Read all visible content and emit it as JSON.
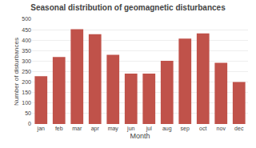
{
  "chart_data": {
    "type": "bar",
    "title": "Seasonal distribution of geomagnetic disturbances",
    "xlabel": "Month",
    "ylabel": "Number of disturbances",
    "categories": [
      "jan",
      "feb",
      "mar",
      "apr",
      "may",
      "jun",
      "jul",
      "aug",
      "sep",
      "oct",
      "nov",
      "dec"
    ],
    "values": [
      228,
      320,
      452,
      428,
      330,
      240,
      240,
      302,
      407,
      432,
      292,
      200
    ],
    "color": "#c0524a",
    "ylim": [
      0,
      500
    ],
    "yticks": [
      0,
      50,
      100,
      150,
      200,
      250,
      300,
      350,
      400,
      450,
      500
    ],
    "grid": true
  }
}
